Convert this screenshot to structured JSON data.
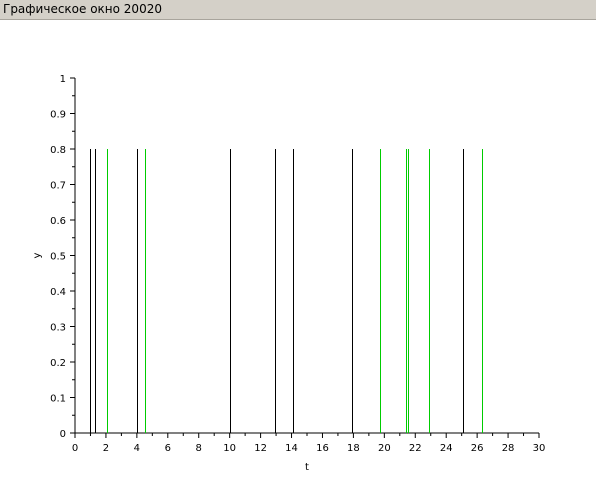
{
  "window": {
    "title": "Графическое окно 20020"
  },
  "chart_data": {
    "type": "stem",
    "xlabel": "t",
    "ylabel": "y",
    "xlim": [
      0,
      30
    ],
    "ylim": [
      0,
      1
    ],
    "x_ticks": [
      0,
      2,
      4,
      6,
      8,
      10,
      12,
      14,
      16,
      18,
      20,
      22,
      24,
      26,
      28,
      30
    ],
    "y_ticks": [
      0,
      0.1,
      0.2,
      0.3,
      0.4,
      0.5,
      0.6,
      0.7,
      0.8,
      0.9,
      1
    ],
    "x_tick_labels": [
      "0",
      "2",
      "4",
      "6",
      "8",
      "10",
      "12",
      "14",
      "16",
      "18",
      "20",
      "22",
      "24",
      "26",
      "28",
      "30"
    ],
    "y_tick_labels": [
      "0",
      "0.1",
      "0.2",
      "0.3",
      "0.4",
      "0.5",
      "0.6",
      "0.7",
      "0.8",
      "0.9",
      "1"
    ],
    "grid": false,
    "series": [
      {
        "color": "#000000",
        "height": 0.8,
        "x": [
          1.0,
          1.3,
          4.0,
          10.0,
          12.9,
          14.1,
          17.9,
          25.1
        ]
      },
      {
        "color": "#00cc00",
        "height": 0.8,
        "x": [
          2.1,
          4.5,
          19.7,
          21.4,
          21.5,
          22.9,
          26.3
        ]
      }
    ]
  }
}
